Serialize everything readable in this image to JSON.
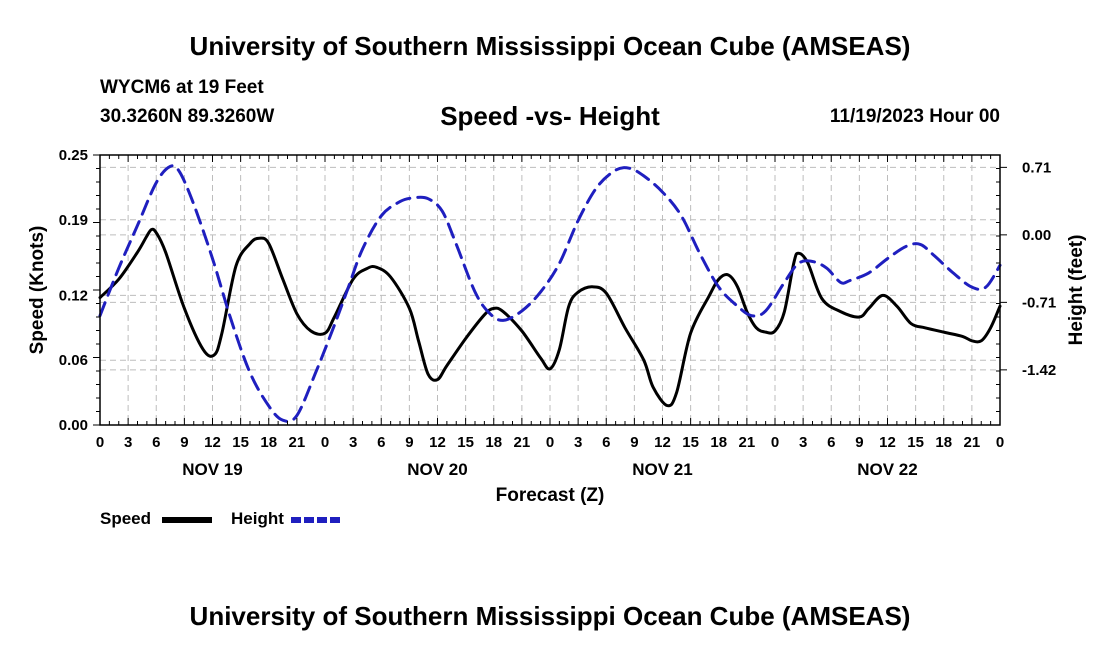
{
  "header": {
    "title": "University of Southern Mississippi Ocean Cube (AMSEAS)",
    "station": "WYCM6 at 19 Feet",
    "coordinates": "30.3260N  89.3260W",
    "subtitle": "Speed -vs- Height",
    "datetime": "11/19/2023 Hour 00"
  },
  "footer": {
    "title": "University of Southern Mississippi Ocean Cube (AMSEAS)"
  },
  "chart_data": {
    "type": "line",
    "xlabel": "Forecast (Z)",
    "ylabel_left": "Speed (Knots)",
    "ylabel_right": "Height (feet)",
    "x_range_hours": [
      0,
      96
    ],
    "x_tick_labels": [
      "0",
      "3",
      "6",
      "9",
      "12",
      "15",
      "18",
      "21",
      "0",
      "3",
      "6",
      "9",
      "12",
      "15",
      "18",
      "21",
      "0",
      "3",
      "6",
      "9",
      "12",
      "15",
      "18",
      "21",
      "0",
      "3",
      "6",
      "9",
      "12",
      "15",
      "18",
      "21",
      "0"
    ],
    "day_labels": [
      "NOV 19",
      "NOV 20",
      "NOV 21",
      "NOV 22"
    ],
    "y_left_range": [
      0,
      0.25
    ],
    "y_left_ticks": [
      "0.00",
      "0.06",
      "0.12",
      "0.19",
      "0.25"
    ],
    "y_right_range": [
      -2.0,
      0.84
    ],
    "y_right_ticks": [
      "0.71",
      "0.00",
      "-0.71",
      "-1.42"
    ],
    "y_right_tick_values": [
      0.71,
      0.0,
      -0.71,
      -1.42
    ],
    "grid": true,
    "series": [
      {
        "name": "Speed",
        "axis": "left",
        "color": "#000000",
        "style": "solid",
        "points": [
          [
            0,
            0.118
          ],
          [
            2,
            0.135
          ],
          [
            4,
            0.16
          ],
          [
            5,
            0.175
          ],
          [
            5.5,
            0.181
          ],
          [
            6,
            0.178
          ],
          [
            7,
            0.16
          ],
          [
            9,
            0.108
          ],
          [
            11,
            0.07
          ],
          [
            12.2,
            0.065
          ],
          [
            13,
            0.085
          ],
          [
            14.5,
            0.147
          ],
          [
            16,
            0.168
          ],
          [
            17,
            0.173
          ],
          [
            18,
            0.168
          ],
          [
            19.5,
            0.135
          ],
          [
            21,
            0.103
          ],
          [
            22.5,
            0.087
          ],
          [
            24,
            0.085
          ],
          [
            25,
            0.1
          ],
          [
            27,
            0.135
          ],
          [
            28.5,
            0.145
          ],
          [
            29.5,
            0.146
          ],
          [
            31,
            0.137
          ],
          [
            33,
            0.108
          ],
          [
            34,
            0.077
          ],
          [
            35,
            0.047
          ],
          [
            36,
            0.042
          ],
          [
            37,
            0.055
          ],
          [
            39,
            0.08
          ],
          [
            41,
            0.102
          ],
          [
            42,
            0.108
          ],
          [
            43,
            0.105
          ],
          [
            45,
            0.087
          ],
          [
            47,
            0.062
          ],
          [
            48,
            0.052
          ],
          [
            49,
            0.07
          ],
          [
            50,
            0.11
          ],
          [
            51,
            0.123
          ],
          [
            52.5,
            0.128
          ],
          [
            54,
            0.122
          ],
          [
            56,
            0.09
          ],
          [
            58,
            0.06
          ],
          [
            59,
            0.035
          ],
          [
            60.5,
            0.018
          ],
          [
            61.5,
            0.03
          ],
          [
            63,
            0.085
          ],
          [
            65,
            0.12
          ],
          [
            66,
            0.135
          ],
          [
            67,
            0.139
          ],
          [
            68,
            0.128
          ],
          [
            69,
            0.105
          ],
          [
            70,
            0.09
          ],
          [
            71,
            0.086
          ],
          [
            72,
            0.087
          ],
          [
            73,
            0.105
          ],
          [
            74,
            0.15
          ],
          [
            74.5,
            0.159
          ],
          [
            75.5,
            0.15
          ],
          [
            77,
            0.117
          ],
          [
            79,
            0.105
          ],
          [
            81,
            0.1
          ],
          [
            82,
            0.108
          ],
          [
            83.5,
            0.12
          ],
          [
            85,
            0.11
          ],
          [
            86.5,
            0.094
          ],
          [
            88,
            0.09
          ],
          [
            90,
            0.086
          ],
          [
            92,
            0.082
          ],
          [
            93,
            0.078
          ],
          [
            94,
            0.078
          ],
          [
            95,
            0.09
          ],
          [
            96,
            0.11
          ]
        ]
      },
      {
        "name": "Height",
        "axis": "right",
        "color": "#1f1fbf",
        "style": "dashed",
        "points": [
          [
            0,
            -0.85
          ],
          [
            2,
            -0.35
          ],
          [
            4,
            0.1
          ],
          [
            6,
            0.55
          ],
          [
            7.5,
            0.72
          ],
          [
            8.5,
            0.66
          ],
          [
            10,
            0.32
          ],
          [
            12,
            -0.25
          ],
          [
            14,
            -0.9
          ],
          [
            16,
            -1.45
          ],
          [
            18,
            -1.8
          ],
          [
            19.5,
            -1.95
          ],
          [
            21,
            -1.9
          ],
          [
            23,
            -1.45
          ],
          [
            25,
            -0.95
          ],
          [
            26.5,
            -0.55
          ],
          [
            28,
            -0.15
          ],
          [
            30,
            0.2
          ],
          [
            32,
            0.35
          ],
          [
            33.5,
            0.39
          ],
          [
            35,
            0.38
          ],
          [
            36.5,
            0.25
          ],
          [
            38,
            -0.1
          ],
          [
            40,
            -0.6
          ],
          [
            41.5,
            -0.82
          ],
          [
            43,
            -0.9
          ],
          [
            45,
            -0.8
          ],
          [
            47,
            -0.6
          ],
          [
            49,
            -0.3
          ],
          [
            51,
            0.15
          ],
          [
            53,
            0.5
          ],
          [
            55,
            0.68
          ],
          [
            56.5,
            0.7
          ],
          [
            58,
            0.62
          ],
          [
            60,
            0.45
          ],
          [
            62,
            0.2
          ],
          [
            64,
            -0.2
          ],
          [
            66,
            -0.55
          ],
          [
            68,
            -0.75
          ],
          [
            69.5,
            -0.85
          ],
          [
            71,
            -0.8
          ],
          [
            73,
            -0.5
          ],
          [
            74.5,
            -0.3
          ],
          [
            76,
            -0.28
          ],
          [
            77.5,
            -0.35
          ],
          [
            79,
            -0.5
          ],
          [
            80,
            -0.48
          ],
          [
            82,
            -0.4
          ],
          [
            84,
            -0.25
          ],
          [
            86,
            -0.12
          ],
          [
            87.5,
            -0.1
          ],
          [
            89,
            -0.22
          ],
          [
            91,
            -0.4
          ],
          [
            93,
            -0.55
          ],
          [
            94.5,
            -0.55
          ],
          [
            96,
            -0.32
          ]
        ]
      }
    ],
    "legend": [
      {
        "label": "Speed",
        "color": "#000000",
        "style": "solid"
      },
      {
        "label": "Height",
        "color": "#1f1fbf",
        "style": "dashed"
      }
    ]
  }
}
